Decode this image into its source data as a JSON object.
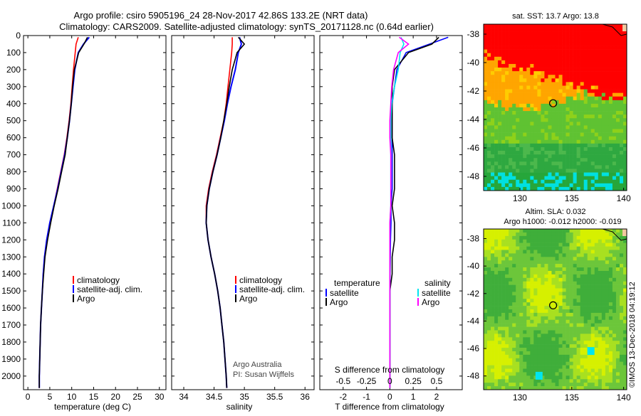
{
  "title_line1": "Argo profile: csiro 5905196_24 28-Nov-2017 42.86S 133.2E (NRT data)",
  "title_line2": "Climatology: CARS2009. Satellite-adjusted climatology: synTS_20171128.nc (0.64d earlier)",
  "colors": {
    "climatology": "#ff0000",
    "satellite": "#0000ff",
    "argo": "#000000",
    "sat_salinity": "#00e5ee",
    "argo_salinity": "#ff00ff"
  },
  "chart_data": [
    {
      "id": "temperature",
      "type": "line",
      "xlabel": "temperature (deg C)",
      "ylabel": "",
      "xlim": [
        -1,
        31.5
      ],
      "ylim": [
        2080,
        0
      ],
      "xticks": [
        0,
        5,
        10,
        15,
        20,
        25,
        30
      ],
      "yticks": [
        0,
        100,
        200,
        300,
        400,
        500,
        600,
        700,
        800,
        900,
        1000,
        1100,
        1200,
        1300,
        1400,
        1500,
        1600,
        1700,
        1800,
        1900,
        2000
      ],
      "legend": [
        "climatology",
        "satellite-adj. clim.",
        "Argo"
      ],
      "series": [
        {
          "name": "climatology",
          "depth": [
            10,
            50,
            100,
            200,
            300,
            400,
            500,
            600,
            700,
            800,
            900,
            1000,
            1100,
            1200,
            1300,
            1400,
            1500,
            1600,
            1700,
            1800,
            1900,
            2000,
            2070
          ],
          "values": [
            11.5,
            11,
            10.8,
            10.4,
            10.1,
            9.8,
            9.4,
            8.9,
            8.3,
            7.5,
            6.7,
            5.9,
            5.0,
            4.3,
            3.8,
            3.5,
            3.3,
            3.1,
            2.9,
            2.8,
            2.7,
            2.6,
            2.6
          ]
        },
        {
          "name": "satellite-adj. clim.",
          "depth": [
            10,
            50,
            100,
            200,
            300,
            400,
            500,
            600,
            700,
            800,
            900,
            1000,
            1100,
            1200,
            1300,
            1400,
            1500,
            1600,
            1700,
            1800,
            1900,
            2000,
            2070
          ],
          "values": [
            14.0,
            12.7,
            11.5,
            10.7,
            10.3,
            9.9,
            9.5,
            9.0,
            8.4,
            7.6,
            6.8,
            5.9,
            5.0,
            4.3,
            3.8,
            3.5,
            3.3,
            3.1,
            2.9,
            2.8,
            2.7,
            2.6,
            2.6
          ]
        },
        {
          "name": "Argo",
          "depth": [
            10,
            50,
            100,
            200,
            300,
            400,
            500,
            600,
            700,
            800,
            900,
            1000,
            1100,
            1200,
            1300,
            1400,
            1500,
            1600,
            1700,
            1800,
            1900,
            2000,
            2070
          ],
          "values": [
            13.6,
            12.8,
            11.6,
            10.6,
            10.2,
            9.9,
            9.5,
            9.0,
            8.5,
            7.7,
            6.9,
            6.0,
            5.2,
            4.5,
            3.9,
            3.6,
            3.3,
            3.1,
            2.9,
            2.8,
            2.7,
            2.6,
            2.6
          ]
        }
      ]
    },
    {
      "id": "salinity",
      "type": "line",
      "xlabel": "salinity",
      "ylabel": "",
      "xlim": [
        33.8,
        36.15
      ],
      "ylim": [
        2080,
        0
      ],
      "xticks": [
        34,
        34.5,
        35,
        35.5,
        36
      ],
      "legend": [
        "climatology",
        "satellite-adj. clim.",
        "Argo"
      ],
      "series": [
        {
          "name": "climatology",
          "depth": [
            10,
            50,
            100,
            200,
            300,
            400,
            500,
            600,
            700,
            800,
            900,
            1000,
            1100,
            1200,
            1300,
            1400,
            1500,
            1600,
            1700,
            1800,
            1900,
            2000,
            2070
          ],
          "values": [
            34.8,
            34.8,
            34.79,
            34.76,
            34.73,
            34.7,
            34.66,
            34.6,
            34.54,
            34.47,
            34.41,
            34.37,
            34.37,
            34.4,
            34.45,
            34.51,
            34.56,
            34.6,
            34.63,
            34.66,
            34.68,
            34.7,
            34.71
          ]
        },
        {
          "name": "satellite-adj. clim.",
          "depth": [
            10,
            50,
            100,
            200,
            300,
            400,
            500,
            600,
            700,
            800,
            900,
            1000,
            1100,
            1200,
            1300,
            1400,
            1500,
            1600,
            1700,
            1800,
            1900,
            2000,
            2070
          ],
          "values": [
            34.92,
            34.95,
            34.9,
            34.85,
            34.78,
            34.72,
            34.67,
            34.61,
            34.55,
            34.48,
            34.42,
            34.38,
            34.37,
            34.4,
            34.45,
            34.51,
            34.56,
            34.6,
            34.63,
            34.66,
            34.68,
            34.7,
            34.71
          ]
        },
        {
          "name": "Argo",
          "depth": [
            10,
            50,
            100,
            200,
            300,
            400,
            500,
            600,
            700,
            800,
            900,
            1000,
            1100,
            1200,
            1300,
            1400,
            1500,
            1600,
            1700,
            1800,
            1900,
            2000,
            2070
          ],
          "values": [
            34.9,
            35.0,
            34.88,
            34.8,
            34.75,
            34.71,
            34.66,
            34.61,
            34.55,
            34.48,
            34.42,
            34.38,
            34.37,
            34.4,
            34.45,
            34.51,
            34.56,
            34.6,
            34.63,
            34.66,
            34.68,
            34.7,
            34.71
          ]
        }
      ],
      "attribution": [
        "Argo Australia",
        "PI: Susan Wijffels"
      ]
    },
    {
      "id": "difference",
      "type": "line",
      "xlabel": "T difference from climatology",
      "xlabel_top": "S difference from climatology",
      "xlim": [
        -3,
        3.1
      ],
      "ylim": [
        2080,
        0
      ],
      "xticks": [
        -2,
        -1,
        0,
        1,
        2
      ],
      "xticks_top": [
        "-0.5",
        "-0.25",
        "0",
        "0.25",
        "0.5"
      ],
      "legend_titles": [
        "temperature",
        "salinity"
      ],
      "legend": [
        "satellite",
        "Argo",
        "satellite",
        "Argo"
      ],
      "series": [
        {
          "name": "temperature satellite",
          "depth": [
            10,
            50,
            100,
            200,
            300,
            400,
            500,
            600,
            700,
            800,
            900,
            1000,
            1100,
            1200,
            1300,
            1400,
            1500,
            1600,
            1700,
            1800,
            1900,
            2000,
            2070
          ],
          "values": [
            2.5,
            1.7,
            0.7,
            0.3,
            0.2,
            0.1,
            0.1,
            0.1,
            0.1,
            0.1,
            0.1,
            0.05,
            0.05,
            0.03,
            0.02,
            0.01,
            0,
            0,
            0,
            0,
            0,
            0,
            0
          ]
        },
        {
          "name": "temperature Argo",
          "depth": [
            10,
            50,
            100,
            200,
            300,
            400,
            500,
            600,
            700,
            800,
            900,
            1000,
            1100,
            1200,
            1300,
            1400,
            1500,
            1600,
            1700,
            1800,
            1900,
            2000,
            2070
          ],
          "values": [
            2.1,
            1.8,
            0.8,
            0.2,
            0.1,
            0.1,
            0.1,
            0.1,
            0.2,
            0.2,
            0.2,
            0.1,
            0.2,
            0.2,
            0.1,
            0.1,
            0,
            0,
            0,
            0,
            0,
            0,
            0
          ]
        },
        {
          "name": "salinity satellite",
          "depth": [
            10,
            50,
            100,
            200,
            300,
            400,
            500,
            600,
            700,
            800,
            900,
            1000,
            1100,
            1200,
            1300,
            1400,
            1500,
            1600,
            1700,
            1800,
            1900,
            2000,
            2070
          ],
          "values": [
            0.12,
            0.15,
            0.11,
            0.09,
            0.05,
            0.02,
            0.01,
            0.01,
            0.01,
            0.01,
            0.01,
            0.01,
            0,
            0,
            0,
            0,
            0,
            0,
            0,
            0,
            0,
            0,
            0
          ]
        },
        {
          "name": "salinity Argo",
          "depth": [
            10,
            50,
            100,
            200,
            300,
            400,
            500,
            600,
            700,
            800,
            900,
            1000,
            1100,
            1200,
            1300,
            1400,
            1500,
            1600,
            1700,
            1800,
            1900,
            2000,
            2070
          ],
          "values": [
            0.1,
            0.2,
            0.09,
            0.04,
            0.02,
            0.01,
            0,
            0,
            0.01,
            0.01,
            0.01,
            0.01,
            0,
            0,
            0,
            0,
            0,
            0,
            0,
            0,
            0,
            0,
            0
          ]
        }
      ]
    },
    {
      "id": "sst_map",
      "type": "heatmap",
      "title": "sat. SST: 13.7 Argo: 13.8",
      "xlim": [
        126.5,
        140.3
      ],
      "ylim": [
        -49,
        -37.3
      ],
      "xticks": [
        130,
        135,
        140
      ],
      "yticks": [
        -38,
        -40,
        -42,
        -44,
        -46,
        -48
      ],
      "marker": {
        "lon": 133.2,
        "lat": -42.86
      }
    },
    {
      "id": "sla_map",
      "type": "heatmap",
      "title": "Altim. SLA: 0.032",
      "subtitle": "Argo h1000: -0.012 h2000: -0.019",
      "xlim": [
        126.5,
        140.3
      ],
      "ylim": [
        -49,
        -37.3
      ],
      "xticks": [
        130,
        135,
        140
      ],
      "yticks": [
        -38,
        -40,
        -42,
        -44,
        -46,
        -48
      ],
      "marker": {
        "lon": 133.2,
        "lat": -42.86
      }
    }
  ],
  "footer": "©IMOS 13-Dec-2018 04:19:12"
}
